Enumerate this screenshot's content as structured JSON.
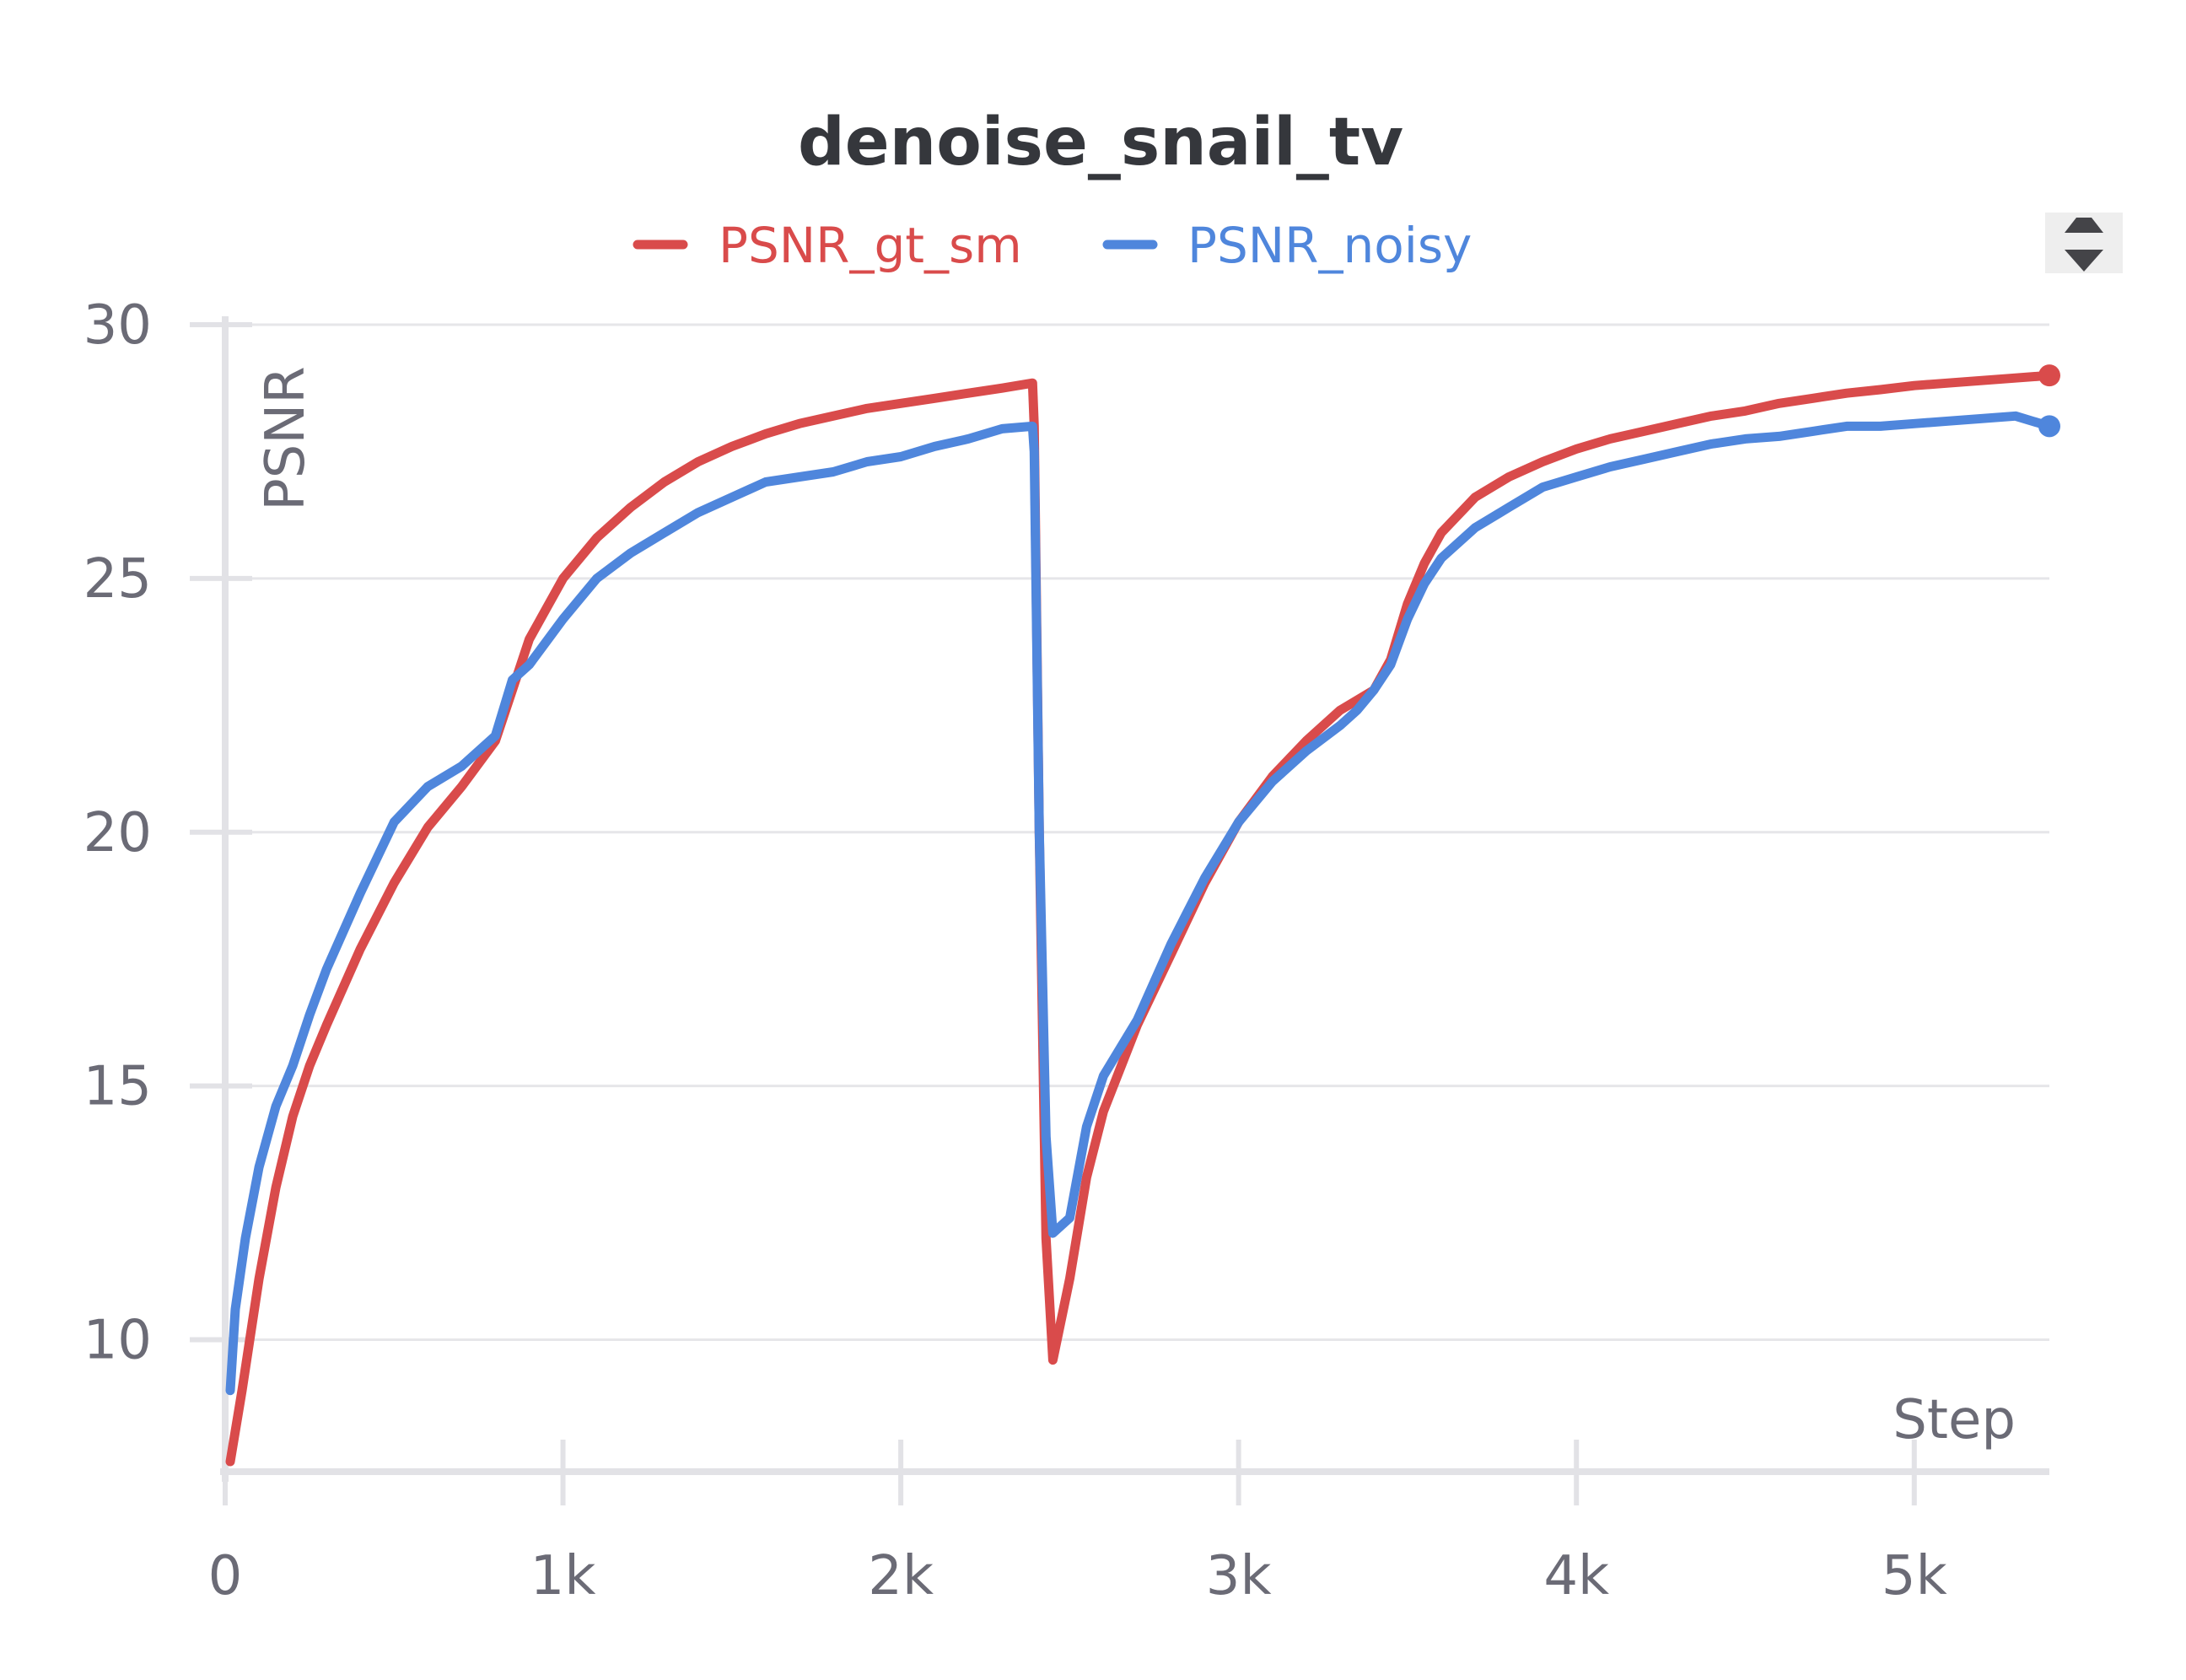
{
  "chart_data": {
    "type": "line",
    "title": "denoise_snail_tv",
    "ylabel": "PSNR",
    "xlabel": "Step",
    "xlim": [
      0,
      5400
    ],
    "ylim": [
      7.4,
      30
    ],
    "x_ticks": [
      0,
      1000,
      2000,
      3000,
      4000,
      5000
    ],
    "x_tick_labels": [
      "0",
      "1k",
      "2k",
      "3k",
      "4k",
      "5k"
    ],
    "y_ticks": [
      10,
      15,
      20,
      25,
      30
    ],
    "y_tick_labels": [
      "10",
      "15",
      "20",
      "25",
      "30"
    ],
    "grid": true,
    "legend_position": "top-center",
    "series": [
      {
        "name": "PSNR_gt_sm",
        "color": "#d94b4b",
        "x": [
          15,
          50,
          100,
          150,
          200,
          250,
          300,
          400,
          500,
          600,
          700,
          800,
          850,
          900,
          1000,
          1100,
          1200,
          1300,
          1400,
          1500,
          1600,
          1700,
          1800,
          1900,
          2000,
          2100,
          2200,
          2300,
          2390,
          2395,
          2410,
          2430,
          2450,
          2500,
          2550,
          2600,
          2700,
          2800,
          2900,
          3000,
          3100,
          3200,
          3300,
          3350,
          3400,
          3450,
          3500,
          3550,
          3600,
          3700,
          3800,
          3900,
          4000,
          4100,
          4200,
          4300,
          4400,
          4500,
          4600,
          4700,
          4800,
          4900,
          5000,
          5100,
          5200,
          5300,
          5400
        ],
        "values": [
          7.6,
          9.0,
          11.2,
          13.0,
          14.4,
          15.4,
          16.2,
          17.7,
          19.0,
          20.1,
          20.9,
          21.8,
          22.8,
          23.8,
          25.0,
          25.8,
          26.4,
          26.9,
          27.3,
          27.6,
          27.85,
          28.05,
          28.2,
          28.35,
          28.45,
          28.55,
          28.65,
          28.75,
          28.85,
          28.0,
          20.0,
          12.0,
          9.6,
          11.2,
          13.2,
          14.5,
          16.2,
          17.6,
          19.0,
          20.2,
          21.1,
          21.8,
          22.4,
          22.6,
          22.8,
          23.4,
          24.5,
          25.3,
          25.9,
          26.6,
          27.0,
          27.3,
          27.55,
          27.75,
          27.9,
          28.05,
          28.2,
          28.3,
          28.45,
          28.55,
          28.65,
          28.72,
          28.8,
          28.85,
          28.9,
          28.95,
          29.0
        ]
      },
      {
        "name": "PSNR_noisy",
        "color": "#4f86dc",
        "x": [
          15,
          30,
          60,
          100,
          150,
          200,
          250,
          300,
          400,
          500,
          600,
          700,
          800,
          850,
          900,
          1000,
          1100,
          1200,
          1300,
          1400,
          1500,
          1600,
          1700,
          1800,
          1900,
          2000,
          2100,
          2200,
          2300,
          2390,
          2395,
          2410,
          2430,
          2450,
          2500,
          2550,
          2600,
          2700,
          2800,
          2900,
          3000,
          3100,
          3200,
          3300,
          3350,
          3400,
          3450,
          3500,
          3550,
          3600,
          3700,
          3800,
          3900,
          4000,
          4100,
          4200,
          4300,
          4400,
          4500,
          4600,
          4700,
          4800,
          4900,
          5000,
          5100,
          5200,
          5300,
          5400
        ],
        "values": [
          9.0,
          10.6,
          12.0,
          13.4,
          14.6,
          15.4,
          16.4,
          17.3,
          18.8,
          20.2,
          20.9,
          21.3,
          21.9,
          23.0,
          23.3,
          24.2,
          25.0,
          25.5,
          25.9,
          26.3,
          26.6,
          26.9,
          27.0,
          27.1,
          27.3,
          27.4,
          27.6,
          27.75,
          27.95,
          28.0,
          27.5,
          20.0,
          14.0,
          12.1,
          12.4,
          14.2,
          15.2,
          16.3,
          17.8,
          19.1,
          20.2,
          21.0,
          21.6,
          22.1,
          22.4,
          22.8,
          23.3,
          24.2,
          24.9,
          25.4,
          26.0,
          26.4,
          26.8,
          27.0,
          27.2,
          27.35,
          27.5,
          27.65,
          27.75,
          27.8,
          27.9,
          28.0,
          28.0,
          28.05,
          28.1,
          28.15,
          28.2,
          28.0
        ]
      }
    ]
  },
  "icons": {
    "scroll_control": "sort-arrows-icon"
  }
}
